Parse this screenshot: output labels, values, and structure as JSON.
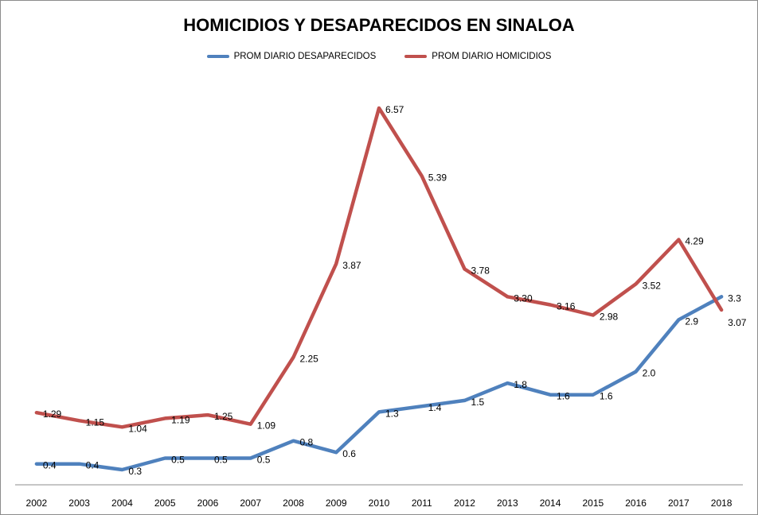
{
  "chart_data": {
    "type": "line",
    "title": "HOMICIDIOS Y DESAPARECIDOS EN SINALOA",
    "categories": [
      "2002",
      "2003",
      "2004",
      "2005",
      "2006",
      "2007",
      "2008",
      "2009",
      "2010",
      "2011",
      "2012",
      "2013",
      "2014",
      "2015",
      "2016",
      "2017",
      "2018"
    ],
    "series": [
      {
        "name": "PROM DIARIO DESAPARECIDOS",
        "color": "#4f81bd",
        "values": [
          0.4,
          0.4,
          0.3,
          0.5,
          0.5,
          0.5,
          0.8,
          0.6,
          1.3,
          1.4,
          1.5,
          1.8,
          1.6,
          1.6,
          2.0,
          2.9,
          3.3
        ],
        "labels": [
          "0.4",
          "0.4",
          "0.3",
          "0.5",
          "0.5",
          "0.5",
          "0.8",
          "0.6",
          "1.3",
          "1.4",
          "1.5",
          "1.8",
          "1.6",
          "1.6",
          "2.0",
          "2.9",
          "3.3"
        ]
      },
      {
        "name": "PROM DIARIO HOMICIDIOS",
        "color": "#c0504d",
        "values": [
          1.29,
          1.15,
          1.04,
          1.19,
          1.25,
          1.09,
          2.25,
          3.87,
          6.57,
          5.39,
          3.78,
          3.3,
          3.16,
          2.98,
          3.52,
          4.29,
          3.07
        ],
        "labels": [
          "1.29",
          "1.15",
          "1.04",
          "1.19",
          "1.25",
          "1.09",
          "2.25",
          "3.87",
          "6.57",
          "5.39",
          "3.78",
          "3.30",
          "3.16",
          "2.98",
          "3.52",
          "4.29",
          "3.07"
        ]
      }
    ],
    "ylim": [
      -0.15,
      6.95
    ],
    "grid": false,
    "legend_position": "top"
  }
}
